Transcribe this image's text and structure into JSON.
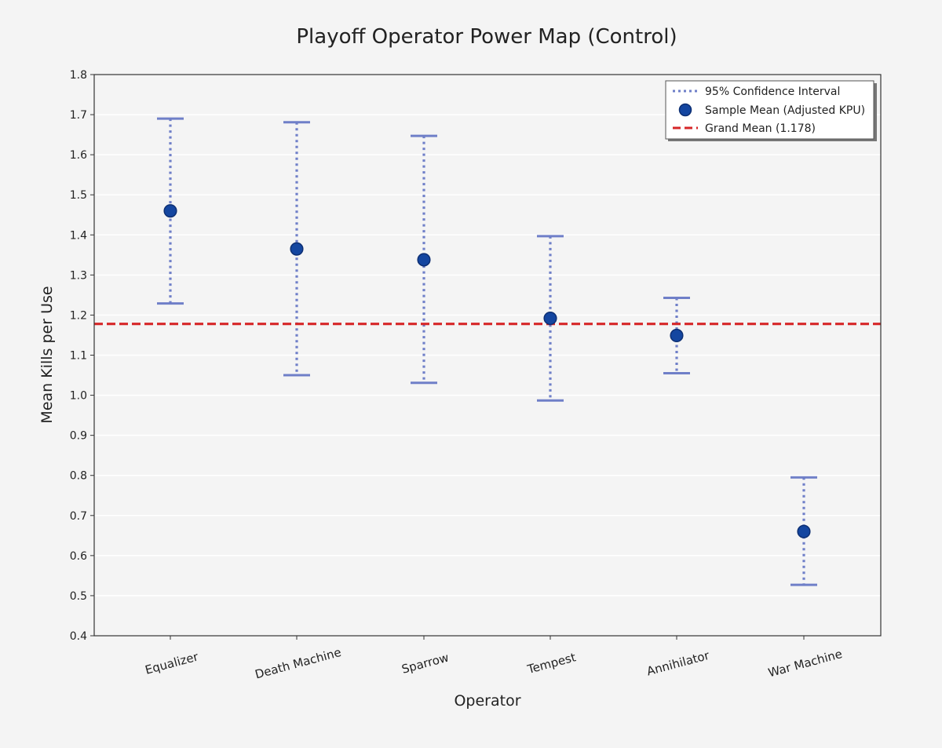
{
  "chart_data": {
    "type": "errorbar",
    "title": "Playoff Operator Power Map (Control)",
    "xlabel": "Operator",
    "ylabel": "Mean Kills per Use",
    "ylim": [
      0.4,
      1.8
    ],
    "yticks": [
      "0.4",
      "0.5",
      "0.6",
      "0.7",
      "0.8",
      "0.9",
      "1.0",
      "1.1",
      "1.2",
      "1.3",
      "1.4",
      "1.5",
      "1.6",
      "1.7",
      "1.8"
    ],
    "categories": [
      "Equalizer",
      "Death Machine",
      "Sparrow",
      "Tempest",
      "Annihilator",
      "War Machine"
    ],
    "means": [
      1.46,
      1.365,
      1.338,
      1.192,
      1.149,
      0.66
    ],
    "ci_lower": [
      1.229,
      1.05,
      1.031,
      0.987,
      1.055,
      0.527
    ],
    "ci_upper": [
      1.69,
      1.681,
      1.647,
      1.397,
      1.243,
      0.795
    ],
    "grand_mean": 1.178,
    "grid": "horizontal",
    "legend_position": "top-right",
    "legend": [
      "95% Confidence Interval",
      "Sample Mean (Adjusted KPU)",
      "Grand Mean (1.178)"
    ],
    "colors": {
      "ci": "#6f7fc8",
      "mean": "#1446a0",
      "mean_edge": "#0d2f73",
      "grand_mean": "#d62728"
    }
  }
}
